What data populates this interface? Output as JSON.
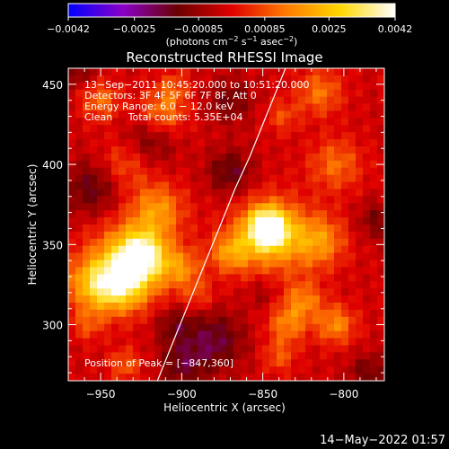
{
  "chart_data": {
    "type": "heatmap",
    "title": "Reconstructed RHESSI Image",
    "xlabel": "Heliocentric X (arcsec)",
    "ylabel": "Heliocentric Y (arcsec)",
    "xlim": [
      -970,
      -775
    ],
    "ylim": [
      265,
      460
    ],
    "xticks": [
      -950,
      -900,
      -850,
      -800
    ],
    "yticks": [
      300,
      350,
      400,
      450
    ],
    "xtick_labels": [
      "−950",
      "−900",
      "−850",
      "−800"
    ],
    "ytick_labels": [
      "300",
      "350",
      "400",
      "450"
    ],
    "colorbar": {
      "range": [
        -0.0042,
        0.0042
      ],
      "ticks": [
        -0.0042,
        -0.0025,
        -0.00085,
        0.00085,
        0.0025,
        0.0042
      ],
      "tick_labels": [
        "−0.0042",
        "−0.0025",
        "−0.00085",
        "0.00085",
        "0.0025",
        "0.0042"
      ],
      "unit_parts": [
        "(photons cm",
        "−2",
        " s",
        "−1",
        " asec",
        "−2",
        ")"
      ],
      "colors": [
        "#0000ff",
        "#8a00c8",
        "#6a0000",
        "#e00000",
        "#ff7a00",
        "#ffd800",
        "#ffffff"
      ]
    },
    "annotations": [
      "13−Sep−2011 10:45:20.000 to 10:51:20.000",
      "Detectors: 3F 4F 5F 6F 7F 8F, Att 0",
      "Energy Range: 6.0 − 12.0 keV",
      "Clean     Total counts: 5.35E+04"
    ],
    "peak_label": "Position of Peak = [−847,360]",
    "peak": [
      -847,
      360
    ],
    "limb": [
      {
        "x": -915,
        "y": 265
      },
      {
        "x": -905,
        "y": 290
      },
      {
        "x": -895,
        "y": 315
      },
      {
        "x": -885,
        "y": 340
      },
      {
        "x": -877,
        "y": 360
      },
      {
        "x": -867,
        "y": 385
      },
      {
        "x": -858,
        "y": 405
      },
      {
        "x": -850,
        "y": 425
      },
      {
        "x": -842,
        "y": 445
      },
      {
        "x": -836,
        "y": 460
      }
    ],
    "blobs": [
      {
        "x": -847,
        "y": 360,
        "w": 0.0042,
        "r": 12
      },
      {
        "x": -845,
        "y": 355,
        "w": 0.0022,
        "r": 24
      },
      {
        "x": -925,
        "y": 343,
        "w": 0.0032,
        "r": 14
      },
      {
        "x": -932,
        "y": 340,
        "w": 0.0022,
        "r": 26
      },
      {
        "x": -938,
        "y": 325,
        "w": 0.0026,
        "r": 16
      },
      {
        "x": -955,
        "y": 325,
        "w": 0.002,
        "r": 16
      },
      {
        "x": -915,
        "y": 372,
        "w": 0.0018,
        "r": 16
      },
      {
        "x": -935,
        "y": 400,
        "w": 0.0012,
        "r": 16
      },
      {
        "x": -950,
        "y": 440,
        "w": 0.0014,
        "r": 12
      },
      {
        "x": -912,
        "y": 432,
        "w": 0.0017,
        "r": 14
      },
      {
        "x": -905,
        "y": 448,
        "w": 0.001,
        "r": 10
      },
      {
        "x": -890,
        "y": 318,
        "w": 0.0009,
        "r": 10
      },
      {
        "x": -900,
        "y": 335,
        "w": 0.0015,
        "r": 12
      },
      {
        "x": -870,
        "y": 345,
        "w": 0.0018,
        "r": 12
      },
      {
        "x": -815,
        "y": 352,
        "w": 0.0018,
        "r": 16
      },
      {
        "x": -805,
        "y": 400,
        "w": 0.0014,
        "r": 16
      },
      {
        "x": -815,
        "y": 445,
        "w": 0.0015,
        "r": 14
      },
      {
        "x": -838,
        "y": 430,
        "w": 0.001,
        "r": 10
      },
      {
        "x": -825,
        "y": 315,
        "w": 0.0016,
        "r": 12
      },
      {
        "x": -835,
        "y": 300,
        "w": 0.0016,
        "r": 12
      },
      {
        "x": -805,
        "y": 300,
        "w": 0.0018,
        "r": 12
      },
      {
        "x": -840,
        "y": 280,
        "w": 0.0011,
        "r": 10
      },
      {
        "x": -935,
        "y": 275,
        "w": 0.0012,
        "r": 10
      },
      {
        "x": -958,
        "y": 300,
        "w": 0.001,
        "r": 10
      },
      {
        "x": -955,
        "y": 385,
        "w": -0.0014,
        "r": 18
      },
      {
        "x": -920,
        "y": 415,
        "w": -0.0012,
        "r": 16
      },
      {
        "x": -870,
        "y": 395,
        "w": -0.0014,
        "r": 14
      },
      {
        "x": -870,
        "y": 440,
        "w": -0.0011,
        "r": 14
      },
      {
        "x": -880,
        "y": 290,
        "w": -0.0016,
        "r": 18
      },
      {
        "x": -905,
        "y": 300,
        "w": -0.0011,
        "r": 12
      },
      {
        "x": -785,
        "y": 270,
        "w": -0.0011,
        "r": 12
      },
      {
        "x": -780,
        "y": 365,
        "w": -0.001,
        "r": 12
      },
      {
        "x": -850,
        "y": 320,
        "w": -0.0007,
        "r": 10
      },
      {
        "x": -965,
        "y": 460,
        "w": -0.0011,
        "r": 12
      },
      {
        "x": -900,
        "y": 275,
        "w": -0.0013,
        "r": 14
      }
    ]
  },
  "footer": {
    "timestamp": "14−May−2022 01:57"
  }
}
